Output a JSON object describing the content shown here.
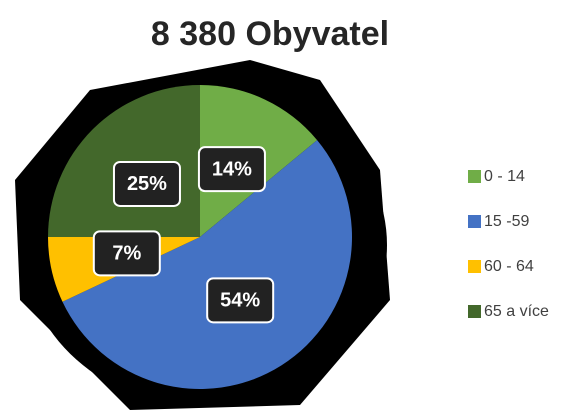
{
  "chart_data": {
    "type": "pie",
    "title": "8 380 Obyvatel",
    "categories": [
      "0 - 14",
      "15 -59",
      "60 - 64",
      "65 a více"
    ],
    "values": [
      14,
      54,
      7,
      25
    ],
    "value_labels": [
      "14%",
      "54%",
      "7%",
      "25%"
    ],
    "colors": [
      "#70ad47",
      "#4472c4",
      "#ffc000",
      "#43682b"
    ],
    "legend": "right"
  }
}
